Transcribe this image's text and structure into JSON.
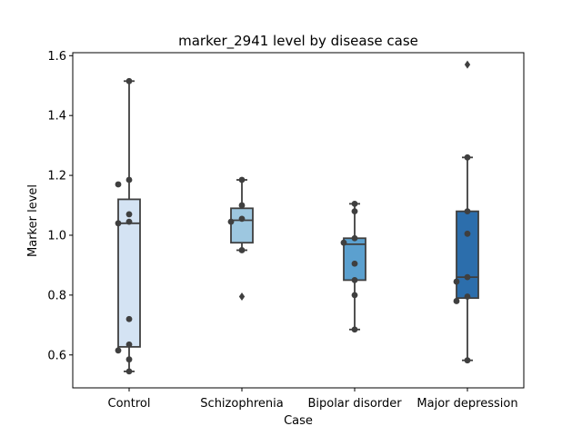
{
  "chart_data": {
    "type": "box",
    "title": "marker_2941 level by disease case",
    "xlabel": "Case",
    "ylabel": "Marker level",
    "ylim": [
      0.49,
      1.61
    ],
    "yticks": [
      "0.6",
      "0.8",
      "1.0",
      "1.2",
      "1.4",
      "1.6"
    ],
    "ytick_values": [
      0.6,
      0.8,
      1.0,
      1.2,
      1.4,
      1.6
    ],
    "grid": false,
    "categories": [
      {
        "name": "Control",
        "color": "#d4e3f3",
        "q1": 0.627,
        "median": 1.04,
        "q3": 1.12,
        "whisker_low": 0.545,
        "whisker_high": 1.515,
        "outliers": [],
        "points": [
          1.515,
          1.185,
          1.17,
          1.07,
          1.045,
          1.04,
          0.72,
          0.635,
          0.615,
          0.585,
          0.545
        ]
      },
      {
        "name": "Schizophrenia",
        "color": "#9dc7e0",
        "q1": 0.975,
        "median": 1.05,
        "q3": 1.09,
        "whisker_low": 0.95,
        "whisker_high": 1.185,
        "outliers": [
          0.795
        ],
        "points": [
          1.185,
          1.1,
          1.055,
          1.045,
          0.95
        ]
      },
      {
        "name": "Bipolar disorder",
        "color": "#5ba0cf",
        "q1": 0.85,
        "median": 0.97,
        "q3": 0.99,
        "whisker_low": 0.685,
        "whisker_high": 1.105,
        "outliers": [],
        "points": [
          1.105,
          1.08,
          0.99,
          0.975,
          0.905,
          0.85,
          0.8,
          0.685
        ]
      },
      {
        "name": "Major depression",
        "color": "#2c6eac",
        "q1": 0.79,
        "median": 0.86,
        "q3": 1.08,
        "whisker_low": 0.582,
        "whisker_high": 1.26,
        "outliers": [
          1.57
        ],
        "points": [
          1.26,
          1.08,
          1.005,
          0.86,
          0.845,
          0.795,
          0.78,
          0.582
        ]
      }
    ]
  }
}
